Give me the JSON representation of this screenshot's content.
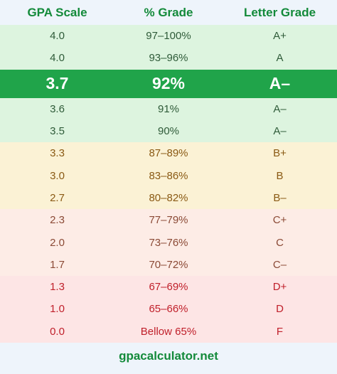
{
  "header": {
    "col1": "GPA Scale",
    "col2": "% Grade",
    "col3": "Letter Grade"
  },
  "rows": [
    {
      "gpa": "4.0",
      "pct": "97–100%",
      "letter": "A+",
      "group": "a"
    },
    {
      "gpa": "4.0",
      "pct": "93–96%",
      "letter": "A",
      "group": "a"
    },
    {
      "gpa": "3.7",
      "pct": "92%",
      "letter": "A–",
      "group": "highlight"
    },
    {
      "gpa": "3.6",
      "pct": "91%",
      "letter": "A–",
      "group": "a"
    },
    {
      "gpa": "3.5",
      "pct": "90%",
      "letter": "A–",
      "group": "a"
    },
    {
      "gpa": "3.3",
      "pct": "87–89%",
      "letter": "B+",
      "group": "b"
    },
    {
      "gpa": "3.0",
      "pct": "83–86%",
      "letter": "B",
      "group": "b"
    },
    {
      "gpa": "2.7",
      "pct": "80–82%",
      "letter": "B–",
      "group": "b"
    },
    {
      "gpa": "2.3",
      "pct": "77–79%",
      "letter": "C+",
      "group": "c"
    },
    {
      "gpa": "2.0",
      "pct": "73–76%",
      "letter": "C",
      "group": "c"
    },
    {
      "gpa": "1.7",
      "pct": "70–72%",
      "letter": "C–",
      "group": "c"
    },
    {
      "gpa": "1.3",
      "pct": "67–69%",
      "letter": "D+",
      "group": "d"
    },
    {
      "gpa": "1.0",
      "pct": "65–66%",
      "letter": "D",
      "group": "d"
    },
    {
      "gpa": "0.0",
      "pct": "Bellow 65%",
      "letter": "F",
      "group": "f"
    }
  ],
  "footer": {
    "site": "gpacalculator.net"
  },
  "colors": {
    "header_text": "#138a3a",
    "highlight_bg": "#20a44a",
    "a_bg": "#ddf4df",
    "b_bg": "#fbf2d5",
    "c_bg": "#fdece6",
    "d_bg": "#fde5e5",
    "d_text": "#c0202b"
  }
}
